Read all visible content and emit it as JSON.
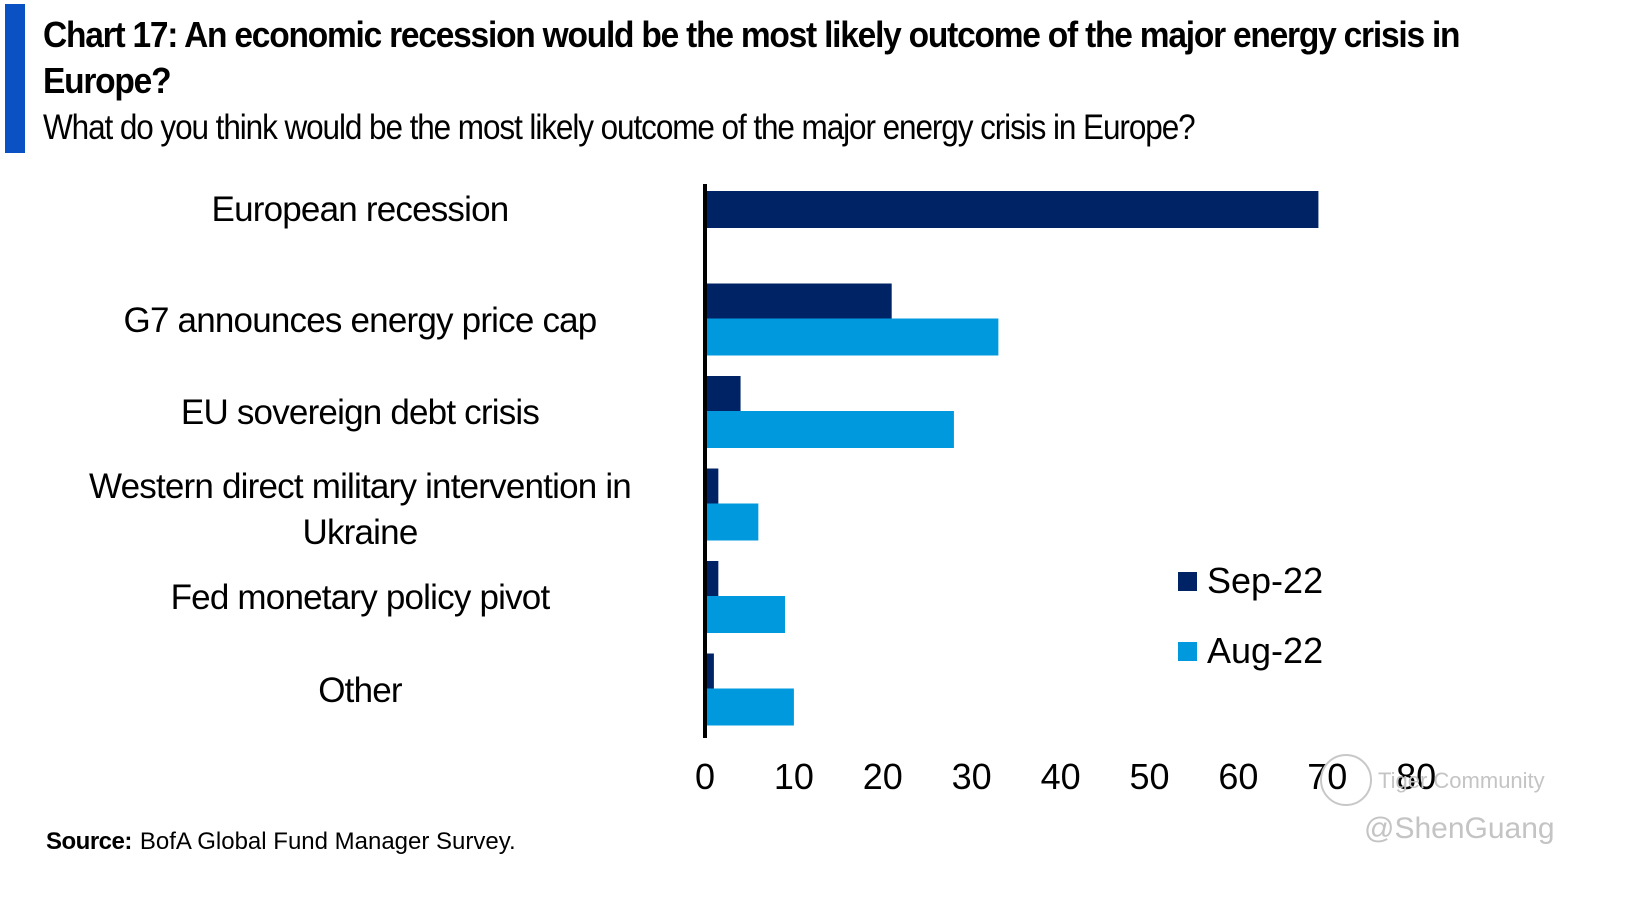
{
  "header": {
    "title": "Chart 17: An economic recession would be the most likely outcome of the major energy crisis in Europe?",
    "subtitle": "What do you think would be the most likely outcome of the major energy crisis in Europe?"
  },
  "footer": {
    "source_label": "Source:",
    "source_text": "BofA Global Fund Manager Survey."
  },
  "watermark": {
    "brand": "Tiger Community",
    "user": "@ShenGuang"
  },
  "colors": {
    "accent": "#0a52c4",
    "sep22": "#002366",
    "aug22": "#0099dd"
  },
  "chart_data": {
    "type": "bar",
    "orientation": "horizontal",
    "title": "Chart 17: An economic recession would be the most likely outcome of the major energy crisis in Europe?",
    "subtitle": "What do you think would be the most likely outcome of the major energy crisis in Europe?",
    "xlabel": "",
    "ylabel": "",
    "categories": [
      "European recession",
      "G7 announces energy price cap",
      "EU sovereign debt crisis",
      "Western direct military intervention in\nUkraine",
      "Fed monetary policy pivot",
      "Other"
    ],
    "series": [
      {
        "name": "Sep-22",
        "color": "#002366",
        "values": [
          69,
          21,
          4,
          1.5,
          1.5,
          1
        ]
      },
      {
        "name": "Aug-22",
        "color": "#0099dd",
        "values": [
          null,
          33,
          28,
          6,
          9,
          10
        ]
      }
    ],
    "xlim": [
      0,
      80
    ],
    "xticks": [
      "0",
      "10",
      "20",
      "30",
      "40",
      "50",
      "60",
      "70",
      "80"
    ],
    "grid": false,
    "legend": {
      "position": "bottom-right",
      "entries": [
        "Sep-22",
        "Aug-22"
      ]
    }
  }
}
